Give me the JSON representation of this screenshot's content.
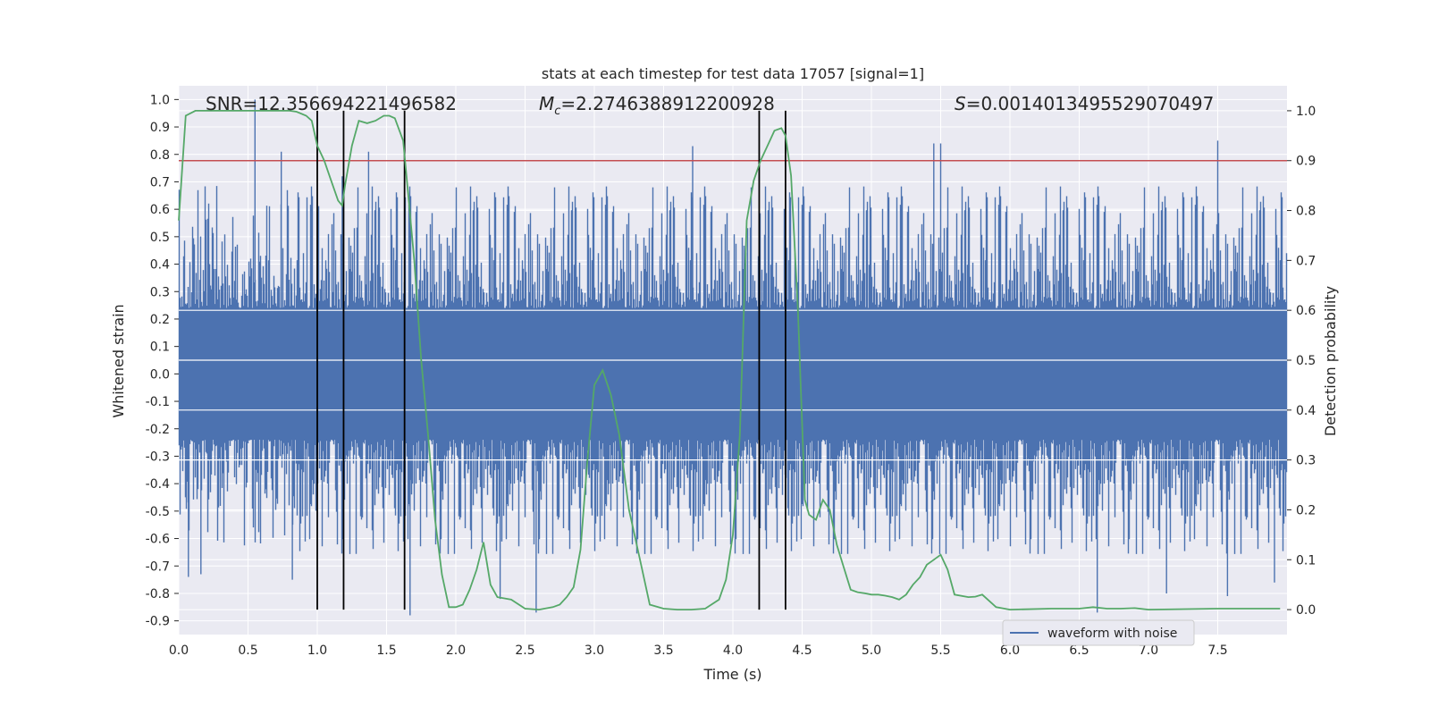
{
  "chart_data": {
    "type": "line",
    "title": "stats at each timestep for test data 17057 [signal=1]",
    "xlabel": "Time (s)",
    "ylabel_left": "Whitened strain",
    "ylabel_right": "Detection probability",
    "xlim": [
      0.0,
      8.0
    ],
    "ylim_left": [
      -0.95,
      1.05
    ],
    "ylim_right": [
      -0.05,
      1.05
    ],
    "x_ticks": [
      "0.0",
      "0.5",
      "1.0",
      "1.5",
      "2.0",
      "2.5",
      "3.0",
      "3.5",
      "4.0",
      "4.5",
      "5.0",
      "5.5",
      "6.0",
      "6.5",
      "7.0",
      "7.5"
    ],
    "left_ticks": [
      "1.0",
      "0.9",
      "0.8",
      "0.7",
      "0.6",
      "0.5",
      "0.4",
      "0.3",
      "0.2",
      "0.1",
      "0.0",
      "-0.1",
      "-0.2",
      "-0.3",
      "-0.4",
      "-0.5",
      "-0.6",
      "-0.7",
      "-0.8",
      "-0.9"
    ],
    "right_ticks": [
      "1.0",
      "0.9",
      "0.8",
      "0.7",
      "0.6",
      "0.5",
      "0.4",
      "0.3",
      "0.2",
      "0.1",
      "0.0"
    ],
    "grid": true,
    "annotations": {
      "snr": "SNR=12.356694221496582",
      "mc": "=2.2746388912200928",
      "mc_symbol": "M",
      "mc_sub": "c",
      "s": "=0.0014013495529070497",
      "s_symbol": "S"
    },
    "legend": {
      "placement": "lower-right",
      "entries": [
        "waveform with noise"
      ]
    },
    "waveform": {
      "name": "waveform with noise",
      "color": "#4c72b0",
      "spikes_upper": [
        [
          0.55,
          1.0
        ],
        [
          0.74,
          0.81
        ],
        [
          1.18,
          0.72
        ],
        [
          1.37,
          0.81
        ],
        [
          3.71,
          0.83
        ],
        [
          5.45,
          0.84
        ],
        [
          5.5,
          0.84
        ],
        [
          7.5,
          0.85
        ]
      ],
      "spikes_lower": [
        [
          0.07,
          -0.74
        ],
        [
          0.16,
          -0.73
        ],
        [
          0.82,
          -0.75
        ],
        [
          1.67,
          -0.88
        ],
        [
          2.32,
          -0.82
        ],
        [
          2.58,
          -0.87
        ],
        [
          6.63,
          -0.87
        ],
        [
          7.13,
          -0.8
        ],
        [
          7.57,
          -0.81
        ],
        [
          7.91,
          -0.76
        ]
      ]
    },
    "detection_probability": {
      "name": "detection probability",
      "color": "#55a868",
      "x": [
        0.0,
        0.05,
        0.12,
        0.2,
        0.3,
        0.4,
        0.5,
        0.6,
        0.7,
        0.8,
        0.85,
        0.92,
        0.96,
        1.0,
        1.05,
        1.1,
        1.15,
        1.18,
        1.2,
        1.25,
        1.3,
        1.36,
        1.42,
        1.48,
        1.52,
        1.56,
        1.62,
        1.65,
        1.7,
        1.75,
        1.8,
        1.85,
        1.9,
        1.95,
        2.0,
        2.05,
        2.1,
        2.15,
        2.2,
        2.25,
        2.3,
        2.4,
        2.5,
        2.6,
        2.7,
        2.75,
        2.8,
        2.85,
        2.9,
        2.95,
        3.0,
        3.06,
        3.12,
        3.18,
        3.25,
        3.33,
        3.4,
        3.5,
        3.6,
        3.7,
        3.8,
        3.9,
        3.95,
        4.0,
        4.05,
        4.1,
        4.15,
        4.2,
        4.25,
        4.3,
        4.35,
        4.38,
        4.42,
        4.47,
        4.52,
        4.55,
        4.6,
        4.65,
        4.7,
        4.75,
        4.8,
        4.85,
        4.9,
        4.95,
        5.0,
        5.05,
        5.1,
        5.15,
        5.2,
        5.25,
        5.3,
        5.35,
        5.4,
        5.45,
        5.5,
        5.55,
        5.6,
        5.7,
        5.75,
        5.8,
        5.9,
        6.0,
        6.3,
        6.4,
        6.5,
        6.6,
        6.7,
        6.8,
        6.9,
        7.0,
        7.5,
        7.95
      ],
      "y": [
        0.78,
        0.99,
        1.0,
        1.0,
        1.0,
        1.0,
        1.0,
        1.0,
        1.0,
        1.0,
        0.998,
        0.99,
        0.98,
        0.93,
        0.9,
        0.86,
        0.82,
        0.81,
        0.85,
        0.93,
        0.98,
        0.975,
        0.98,
        0.99,
        0.99,
        0.985,
        0.94,
        0.85,
        0.7,
        0.5,
        0.35,
        0.18,
        0.07,
        0.005,
        0.005,
        0.01,
        0.04,
        0.08,
        0.135,
        0.05,
        0.025,
        0.02,
        0.002,
        0.0,
        0.005,
        0.01,
        0.025,
        0.045,
        0.12,
        0.3,
        0.45,
        0.48,
        0.43,
        0.35,
        0.2,
        0.1,
        0.01,
        0.002,
        0.0,
        0.0,
        0.002,
        0.02,
        0.06,
        0.15,
        0.35,
        0.78,
        0.86,
        0.9,
        0.93,
        0.96,
        0.965,
        0.95,
        0.87,
        0.6,
        0.22,
        0.19,
        0.18,
        0.22,
        0.2,
        0.13,
        0.085,
        0.04,
        0.035,
        0.033,
        0.03,
        0.03,
        0.028,
        0.025,
        0.02,
        0.03,
        0.05,
        0.065,
        0.09,
        0.1,
        0.11,
        0.08,
        0.03,
        0.025,
        0.026,
        0.03,
        0.005,
        0.0,
        0.002,
        0.002,
        0.002,
        0.005,
        0.002,
        0.002,
        0.003,
        0.0,
        0.002,
        0.002
      ]
    },
    "threshold": {
      "value": 0.9,
      "axis": "right",
      "color": "#c44e52"
    },
    "vertical_lines": [
      1.0,
      1.19,
      1.63,
      4.19,
      4.38
    ],
    "vertical_line_color": "#000000"
  }
}
